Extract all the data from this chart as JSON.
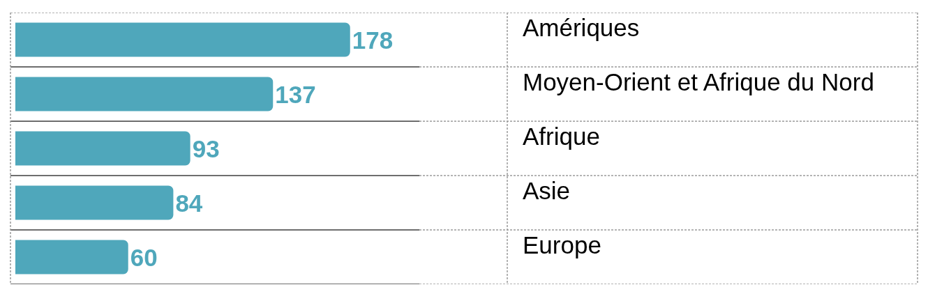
{
  "chart_data": {
    "type": "bar",
    "orientation": "horizontal",
    "categories": [
      "Amériques",
      "Moyen-Orient et Afrique du Nord",
      "Afrique",
      "Asie",
      "Europe"
    ],
    "values": [
      178,
      137,
      93,
      84,
      60
    ],
    "color": "#4fa7bb",
    "data_labels": true
  }
}
